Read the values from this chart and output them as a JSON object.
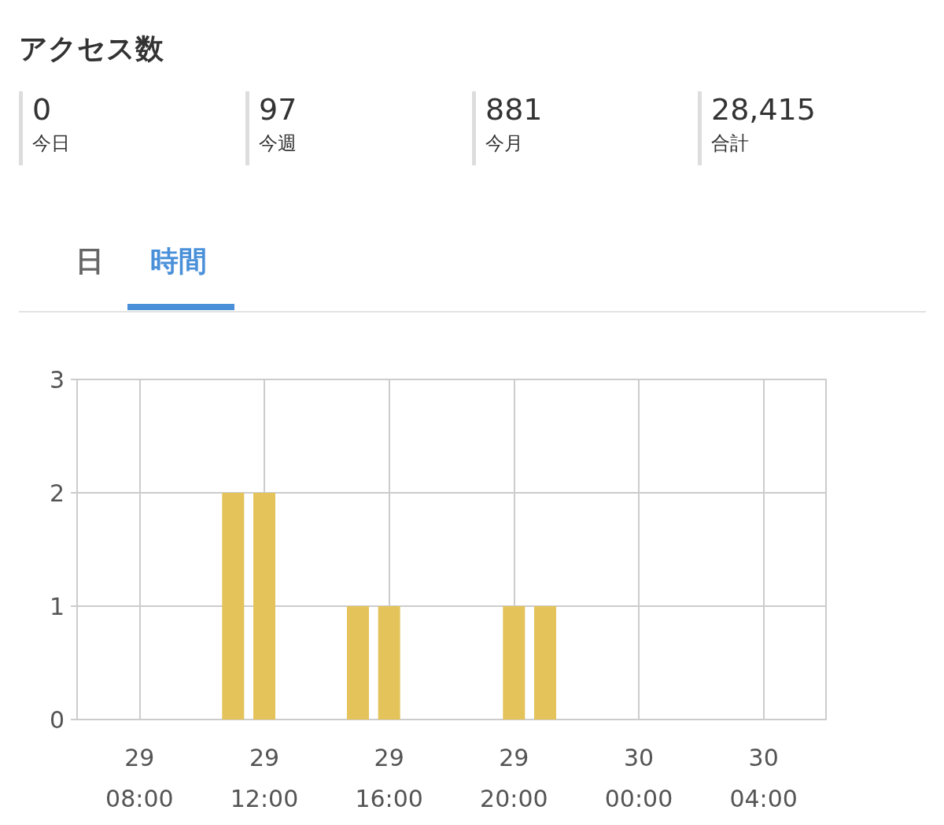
{
  "chart_data": [
    {
      "type": "other",
      "title": "アクセス数",
      "annotations": [
        "0",
        "今日",
        "97",
        "今週",
        "881",
        "今月",
        "28,415",
        "合計",
        "日",
        "時間"
      ]
    },
    {
      "type": "bar",
      "color": "#e4c35b",
      "categories": [
        null,
        null,
        "29\n08:00",
        null,
        null,
        null,
        "29\n12:00",
        null,
        null,
        null,
        "29\n16:00",
        null,
        null,
        null,
        "29\n20:00",
        null,
        null,
        null,
        "30\n00:00",
        null,
        null,
        null,
        "30\n04:00",
        null,
        null
      ],
      "values": [
        0,
        0,
        null,
        0,
        null,
        2,
        2,
        null,
        null,
        1,
        1,
        null,
        null,
        null,
        1,
        1,
        null,
        null,
        null,
        null,
        null,
        null,
        null,
        null,
        null
      ],
      "ylim": [
        0,
        3
      ],
      "yticks": [
        0,
        1,
        2,
        3
      ],
      "grid": true
    }
  ]
}
